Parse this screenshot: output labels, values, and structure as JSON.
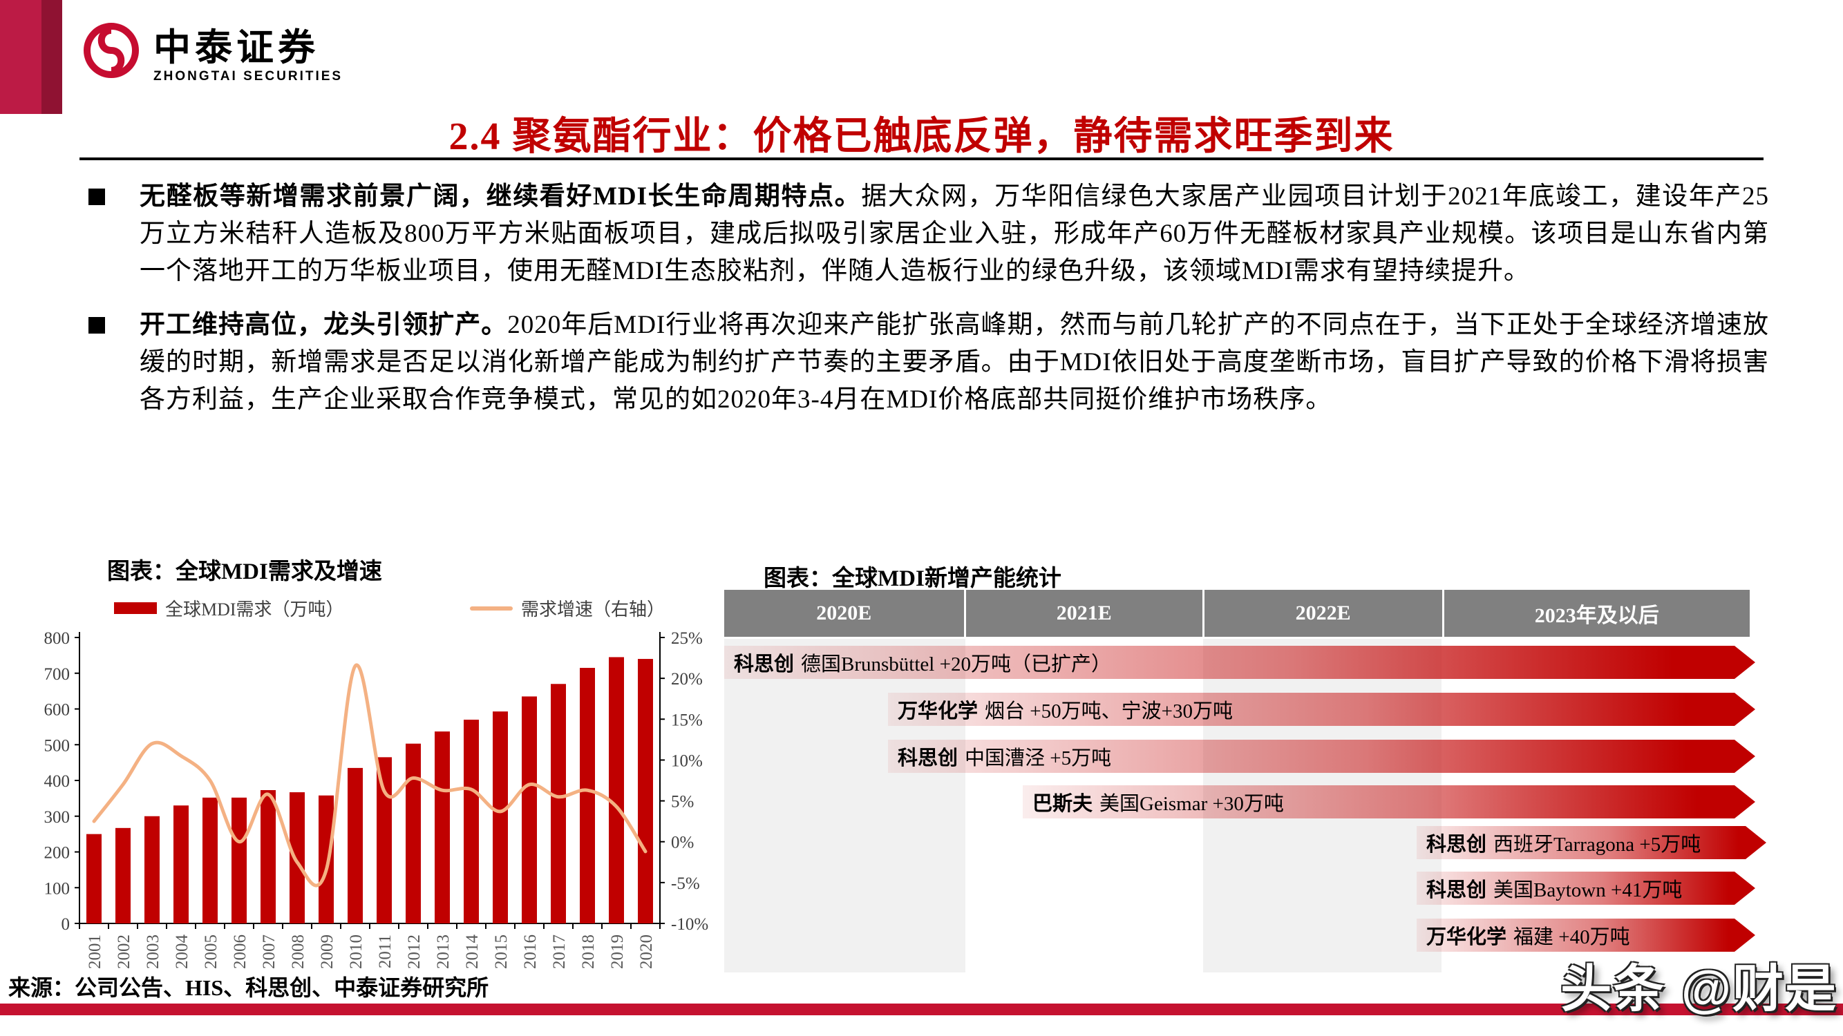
{
  "brand": {
    "name_cn": "中泰证券",
    "name_en": "ZHONGTAI SECURITIES"
  },
  "title": "2.4 聚氨酯行业：价格已触底反弹，静待需求旺季到来",
  "bullets": [
    {
      "lead": "无醛板等新增需求前景广阔，继续看好MDI长生命周期特点。",
      "body": "据大众网，万华阳信绿色大家居产业园项目计划于2021年底竣工，建设年产25万立方米秸秆人造板及800万平方米贴面板项目，建成后拟吸引家居企业入驻，形成年产60万件无醛板材家具产业规模。该项目是山东省内第一个落地开工的万华板业项目，使用无醛MDI生态胶粘剂，伴随人造板行业的绿色升级，该领域MDI需求有望持续提升。"
    },
    {
      "lead": "开工维持高位，龙头引领扩产。",
      "body": "2020年后MDI行业将再次迎来产能扩张高峰期，然而与前几轮扩产的不同点在于，当下正处于全球经济增速放缓的时期，新增需求是否足以消化新增产能成为制约扩产节奏的主要矛盾。由于MDI依旧处于高度垄断市场，盲目扩产导致的价格下滑将损害各方利益，生产企业采取合作竞争模式，常见的如2020年3-4月在MDI价格底部共同挺价维护市场秩序。"
    }
  ],
  "left_chart": {
    "title": "图表：全球MDI需求及增速",
    "legend": [
      {
        "label": "全球MDI需求（万吨）",
        "type": "bar",
        "color": "#c00000"
      },
      {
        "label": "需求增速（右轴）",
        "type": "line",
        "color": "#f4b183"
      }
    ]
  },
  "chart_data": [
    {
      "type": "bar",
      "title": "图表：全球MDI需求及增速",
      "categories": [
        "2001",
        "2002",
        "2003",
        "2004",
        "2005",
        "2006",
        "2007",
        "2008",
        "2009",
        "2010",
        "2011",
        "2012",
        "2013",
        "2014",
        "2015",
        "2016",
        "2017",
        "2018",
        "2019",
        "2020"
      ],
      "series": [
        {
          "name": "全球MDI需求（万吨）",
          "type": "bar",
          "axis": "left",
          "values": [
            250,
            267,
            300,
            330,
            352,
            352,
            373,
            367,
            358,
            435,
            465,
            503,
            537,
            570,
            593,
            635,
            670,
            715,
            745,
            740
          ]
        },
        {
          "name": "需求增速（右轴）",
          "type": "line",
          "axis": "right",
          "values": [
            2.5,
            7,
            12,
            10.5,
            7.5,
            0,
            5.8,
            -2.5,
            -3.5,
            21.5,
            6.2,
            7.8,
            6.3,
            6.4,
            3.7,
            7,
            5.5,
            6.3,
            4.3,
            -1.2
          ]
        }
      ],
      "left_axis": {
        "min": 0,
        "max": 800,
        "step": 100
      },
      "right_axis": {
        "min": -10,
        "max": 25,
        "step": 5,
        "format": "percent"
      },
      "grid": false,
      "legend_position": "top"
    },
    {
      "type": "table",
      "title": "图表：全球MDI新增产能统计",
      "columns": [
        "2020E",
        "2021E",
        "2022E",
        "2023年及以后"
      ],
      "rows": [
        {
          "company": "科思创",
          "detail": "德国Brunsbüttel +20万吨（已扩产）",
          "starts_in": "2020E"
        },
        {
          "company": "万华化学",
          "detail": "烟台 +50万吨、宁波+30万吨",
          "starts_in": "2020E"
        },
        {
          "company": "科思创",
          "detail": "中国漕泾 +5万吨",
          "starts_in": "2020E"
        },
        {
          "company": "巴斯夫",
          "detail": "美国Geismar +30万吨",
          "starts_in": "2021E"
        },
        {
          "company": "科思创",
          "detail": "西班牙Tarragona +5万吨",
          "starts_in": "2022E"
        },
        {
          "company": "科思创",
          "detail": "美国Baytown +41万吨",
          "starts_in": "2022E"
        },
        {
          "company": "万华化学",
          "detail": "福建 +40万吨",
          "starts_in": "2022E"
        }
      ]
    }
  ],
  "right_chart": {
    "title": "图表：全球MDI新增产能统计",
    "columns": [
      "2020E",
      "2021E",
      "2022E",
      "2023年及以后"
    ]
  },
  "footer": {
    "source": "来源：公司公告、HIS、科思创、中泰证券研究所"
  },
  "watermark": "头条 @财是",
  "colors": {
    "accent_red": "#c00000",
    "line_peach": "#f4b183",
    "header_gray": "#808080",
    "stripe_gray": "#f1f1f1",
    "bottom_bar": "#c51230",
    "deco_light": "#bc1b45",
    "deco_dark": "#8f1232",
    "logo_red": "#c60c30"
  }
}
